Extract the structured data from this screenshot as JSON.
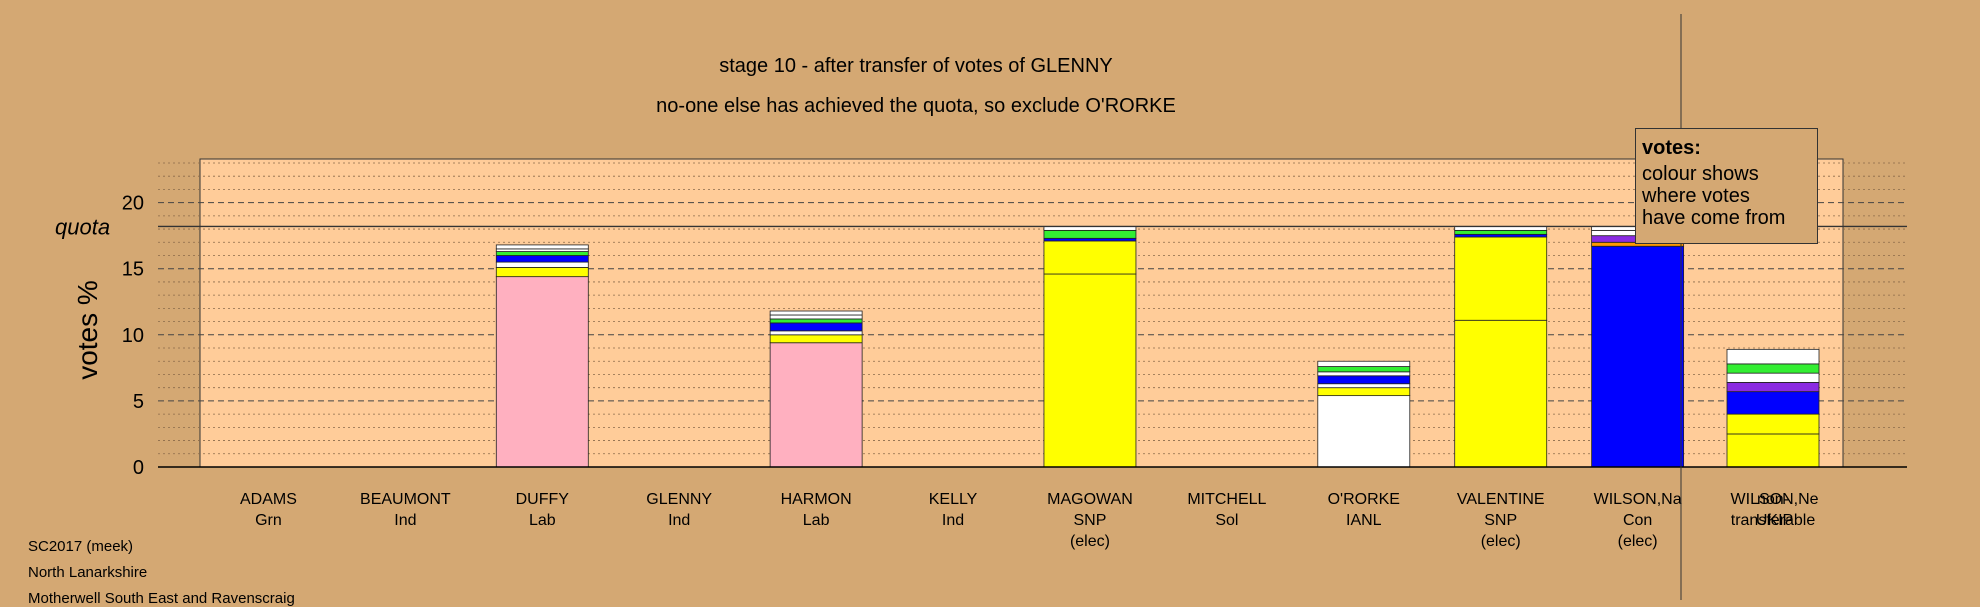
{
  "chart_data": {
    "type": "bar",
    "title": "stage 10 - after transfer of votes of GLENNY",
    "subtitle": "no-one else has achieved the quota, so exclude O'RORKE",
    "ylabel": "votes %",
    "quota_label": "quota",
    "quota": 18.2,
    "ylim": [
      0,
      23.3
    ],
    "yticks": [
      0,
      5,
      10,
      15,
      20
    ],
    "grid": true,
    "legend_position": "top-right",
    "colors": {
      "pink": "#ffb0c0",
      "yellow": "#ffff00",
      "blue": "#0000ff",
      "white": "#ffffff",
      "green": "#33ee33",
      "purple": "#8a2be2",
      "orange": "#ff9900",
      "darkgreen": "#006400",
      "grey": "#999999",
      "plot_bg": "#ffcc99",
      "page_bg": "#d4a873"
    },
    "categories": [
      {
        "name": "ADAMS",
        "party": "Grn",
        "note": "",
        "segments": []
      },
      {
        "name": "BEAUMONT",
        "party": "Ind",
        "note": "",
        "segments": []
      },
      {
        "name": "DUFFY",
        "party": "Lab",
        "note": "",
        "segments": [
          {
            "value": 14.4,
            "color": "pink"
          },
          {
            "value": 0.7,
            "color": "yellow"
          },
          {
            "value": 0.4,
            "color": "white"
          },
          {
            "value": 0.5,
            "color": "blue"
          },
          {
            "value": 0.3,
            "color": "green"
          },
          {
            "value": 0.2,
            "color": "white"
          },
          {
            "value": 0.3,
            "color": "white"
          }
        ]
      },
      {
        "name": "GLENNY",
        "party": "Ind",
        "note": "",
        "segments": []
      },
      {
        "name": "HARMON",
        "party": "Lab",
        "note": "",
        "segments": [
          {
            "value": 9.4,
            "color": "pink"
          },
          {
            "value": 0.6,
            "color": "yellow"
          },
          {
            "value": 0.3,
            "color": "white"
          },
          {
            "value": 0.6,
            "color": "blue"
          },
          {
            "value": 0.3,
            "color": "green"
          },
          {
            "value": 0.3,
            "color": "white"
          },
          {
            "value": 0.3,
            "color": "white"
          }
        ]
      },
      {
        "name": "KELLY",
        "party": "Ind",
        "note": "",
        "segments": []
      },
      {
        "name": "MAGOWAN",
        "party": "SNP",
        "note": "(elec)",
        "segments": [
          {
            "value": 14.6,
            "color": "yellow"
          },
          {
            "value": 2.5,
            "color": "yellow"
          },
          {
            "value": 0.2,
            "color": "blue"
          },
          {
            "value": 0.6,
            "color": "green"
          },
          {
            "value": 0.3,
            "color": "white"
          }
        ]
      },
      {
        "name": "MITCHELL",
        "party": "Sol",
        "note": "",
        "segments": []
      },
      {
        "name": "O'RORKE",
        "party": "IANL",
        "note": "",
        "segments": [
          {
            "value": 5.4,
            "color": "white"
          },
          {
            "value": 0.6,
            "color": "yellow"
          },
          {
            "value": 0.3,
            "color": "white"
          },
          {
            "value": 0.6,
            "color": "blue"
          },
          {
            "value": 0.3,
            "color": "white"
          },
          {
            "value": 0.4,
            "color": "green"
          },
          {
            "value": 0.4,
            "color": "white"
          }
        ]
      },
      {
        "name": "VALENTINE",
        "party": "SNP",
        "note": "(elec)",
        "segments": [
          {
            "value": 11.1,
            "color": "yellow"
          },
          {
            "value": 6.3,
            "color": "yellow"
          },
          {
            "value": 0.2,
            "color": "blue"
          },
          {
            "value": 0.3,
            "color": "green"
          },
          {
            "value": 0.3,
            "color": "white"
          }
        ]
      },
      {
        "name": "WILSON,Na",
        "party": "Con",
        "note": "(elec)",
        "segments": [
          {
            "value": 16.7,
            "color": "blue"
          },
          {
            "value": 0.3,
            "color": "orange"
          },
          {
            "value": 0.5,
            "color": "purple"
          },
          {
            "value": 0.4,
            "color": "white"
          },
          {
            "value": 0.3,
            "color": "white"
          }
        ]
      },
      {
        "name": "WILSON,Ne",
        "party": "UKIP",
        "note": "",
        "segments": []
      }
    ],
    "nontransferable": {
      "label_line1": "non-",
      "label_line2": "transferable",
      "segments": [
        {
          "value": 2.5,
          "color": "yellow"
        },
        {
          "value": 1.5,
          "color": "yellow"
        },
        {
          "value": 1.7,
          "color": "blue"
        },
        {
          "value": 0.7,
          "color": "purple"
        },
        {
          "value": 0.7,
          "color": "white"
        },
        {
          "value": 0.7,
          "color": "green"
        },
        {
          "value": 1.1,
          "color": "white"
        }
      ]
    }
  },
  "legend": {
    "title": "votes:",
    "line1": "colour shows",
    "line2": "where votes",
    "line3": "have come from"
  },
  "footer": {
    "line1": "SC2017 (meek)",
    "line2": "North Lanarkshire",
    "line3": "Motherwell South East and Ravenscraig"
  }
}
